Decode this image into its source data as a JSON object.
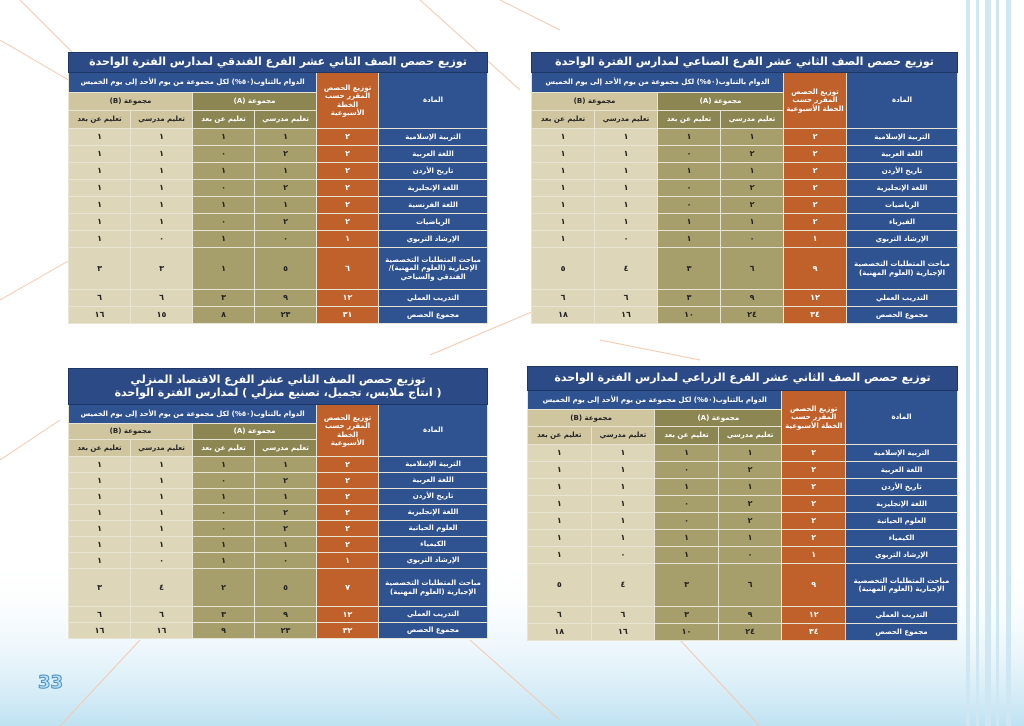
{
  "page_number": "33",
  "tables": [
    {
      "title": [
        "توزيع حصص الصف الثاني عشر الفرع الفندقي لمدارس الفترة الواحدة"
      ],
      "header": {
        "subject": "المادة",
        "total": "توزيع الحصص المقرر حسب الخطة الأسبوعية",
        "schedule": "الدوام بالتناوب(٥٠%) لكل مجموعة من يوم الأحد إلى يوم الخميس",
        "group_a": "مجموعة (A)",
        "group_b": "مجموعة (B)",
        "subheads": [
          "تعليم مدرسي",
          "تعليم عن بعد",
          "تعليم مدرسي",
          "تعليم عن بعد"
        ]
      },
      "rows": [
        [
          "التربية الإسلامية",
          "٢",
          "١",
          "١",
          "١",
          "١"
        ],
        [
          "اللغة العربية",
          "٢",
          "٢",
          "٠",
          "١",
          "١"
        ],
        [
          "تاريخ الأردن",
          "٢",
          "١",
          "١",
          "١",
          "١"
        ],
        [
          "اللغة الإنجليزية",
          "٢",
          "٢",
          "٠",
          "١",
          "١"
        ],
        [
          "اللغة الفرنسية",
          "٢",
          "١",
          "١",
          "١",
          "١"
        ],
        [
          "الرياضيات",
          "٢",
          "٢",
          "٠",
          "١",
          "١"
        ],
        [
          "الإرشاد التربوي",
          "١",
          "٠",
          "١",
          "٠",
          "١"
        ],
        [
          "مباحث المتطلبات التخصصية الإجبارية (العلوم المهنية)/ الفندقي والسياحي",
          "٦",
          "٥",
          "١",
          "٣",
          "٣"
        ],
        [
          "التدريب العملي",
          "١٢",
          "٩",
          "٣",
          "٦",
          "٦"
        ],
        [
          "مجموع الحصص",
          "٣١",
          "٢٣",
          "٨",
          "١٥",
          "١٦"
        ]
      ]
    },
    {
      "title": [
        "توزيع حصص الصف الثاني عشر الفرع الصناعي لمدارس الفترة الواحدة"
      ],
      "header": {
        "subject": "المادة",
        "total": "توزيع الحصص المقرر حسب الخطة الأسبوعية",
        "schedule": "الدوام بالتناوب(٥٠%) لكل مجموعة من يوم الأحد إلى يوم الخميس",
        "group_a": "مجموعة (A)",
        "group_b": "مجموعة (B)",
        "subheads": [
          "تعليم مدرسي",
          "تعليم عن بعد",
          "تعليم مدرسي",
          "تعليم عن بعد"
        ]
      },
      "rows": [
        [
          "التربية الإسلامية",
          "٢",
          "١",
          "١",
          "١",
          "١"
        ],
        [
          "اللغة العربية",
          "٢",
          "٢",
          "٠",
          "١",
          "١"
        ],
        [
          "تاريخ الأردن",
          "٢",
          "١",
          "١",
          "١",
          "١"
        ],
        [
          "اللغة الإنجليزية",
          "٢",
          "٢",
          "٠",
          "١",
          "١"
        ],
        [
          "الرياضيات",
          "٢",
          "٢",
          "٠",
          "١",
          "١"
        ],
        [
          "الفيزياء",
          "٢",
          "١",
          "١",
          "١",
          "١"
        ],
        [
          "الإرشاد التربوي",
          "١",
          "٠",
          "١",
          "٠",
          "١"
        ],
        [
          "مباحث المتطلبات التخصصية الإجبارية (العلوم المهنية)",
          "٩",
          "٦",
          "٣",
          "٤",
          "٥"
        ],
        [
          "التدريب العملي",
          "١٢",
          "٩",
          "٣",
          "٦",
          "٦"
        ],
        [
          "مجموع الحصص",
          "٣٤",
          "٢٤",
          "١٠",
          "١٦",
          "١٨"
        ]
      ]
    },
    {
      "title": [
        "توزيع حصص الصف الثاني عشر الفرع الاقتصاد المنزلي",
        "( انتاج ملابس، تجميل، تصنيع منزلي ) لمدارس الفترة الواحدة"
      ],
      "header": {
        "subject": "المادة",
        "total": "توزيع الحصص المقرر حسب الخطة الأسبوعية",
        "schedule": "الدوام بالتناوب(٥٠%) لكل مجموعة من يوم الأحد إلى يوم الخميس",
        "group_a": "مجموعة (A)",
        "group_b": "مجموعة (B)",
        "subheads": [
          "تعليم مدرسي",
          "تعليم عن بعد",
          "تعليم مدرسي",
          "تعليم عن بعد"
        ]
      },
      "rows": [
        [
          "التربية الإسلامية",
          "٢",
          "١",
          "١",
          "١",
          "١"
        ],
        [
          "اللغة العربية",
          "٢",
          "٢",
          "٠",
          "١",
          "١"
        ],
        [
          "تاريخ الأردن",
          "٢",
          "١",
          "١",
          "١",
          "١"
        ],
        [
          "اللغة الإنجليزية",
          "٢",
          "٢",
          "٠",
          "١",
          "١"
        ],
        [
          "العلوم الحياتية",
          "٢",
          "٢",
          "٠",
          "١",
          "١"
        ],
        [
          "الكيمياء",
          "٢",
          "١",
          "١",
          "١",
          "١"
        ],
        [
          "الإرشاد التربوي",
          "١",
          "٠",
          "١",
          "٠",
          "١"
        ],
        [
          "مباحث المتطلبات التخصصية الإجبارية (العلوم المهنية)",
          "٧",
          "٥",
          "٢",
          "٤",
          "٣"
        ],
        [
          "التدريب العملي",
          "١٢",
          "٩",
          "٣",
          "٦",
          "٦"
        ],
        [
          "مجموع الحصص",
          "٣٢",
          "٢٣",
          "٩",
          "١٦",
          "١٦"
        ]
      ]
    },
    {
      "title": [
        "توزيع حصص الصف الثاني عشر الفرع الزراعي لمدارس الفترة الواحدة"
      ],
      "header": {
        "subject": "المادة",
        "total": "توزيع الحصص المقرر حسب الخطة الأسبوعية",
        "schedule": "الدوام بالتناوب(٥٠%) لكل مجموعة من يوم الأحد إلى يوم الخميس",
        "group_a": "مجموعة (A)",
        "group_b": "مجموعة (B)",
        "subheads": [
          "تعليم مدرسي",
          "تعليم عن بعد",
          "تعليم مدرسي",
          "تعليم عن بعد"
        ]
      },
      "rows": [
        [
          "التربية الإسلامية",
          "٢",
          "١",
          "١",
          "١",
          "١"
        ],
        [
          "اللغة العربية",
          "٢",
          "٢",
          "٠",
          "١",
          "١"
        ],
        [
          "تاريخ الأردن",
          "٢",
          "١",
          "١",
          "١",
          "١"
        ],
        [
          "اللغة الإنجليزية",
          "٢",
          "٢",
          "٠",
          "١",
          "١"
        ],
        [
          "العلوم الحياتية",
          "٢",
          "٢",
          "٠",
          "١",
          "١"
        ],
        [
          "الكيمياء",
          "٢",
          "١",
          "١",
          "١",
          "١"
        ],
        [
          "الإرشاد التربوي",
          "١",
          "٠",
          "١",
          "٠",
          "١"
        ],
        [
          "مباحث المتطلبات التخصصية الإجبارية (العلوم المهنية)",
          "٩",
          "٦",
          "٣",
          "٤",
          "٥"
        ],
        [
          "التدريب العملي",
          "١٢",
          "٩",
          "٣",
          "٦",
          "٦"
        ],
        [
          "مجموع الحصص",
          "٣٤",
          "٢٤",
          "١٠",
          "١٦",
          "١٨"
        ]
      ]
    }
  ]
}
